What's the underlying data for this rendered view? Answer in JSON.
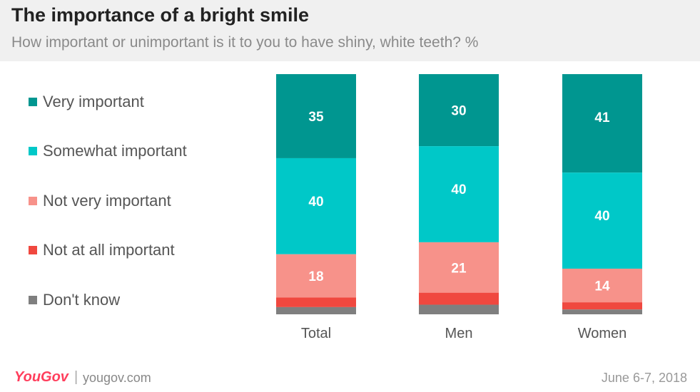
{
  "title": "The importance of a bright smile",
  "subtitle": "How important or unimportant is it to you to have shiny, white teeth? %",
  "footer": {
    "brand": "YouGov",
    "separator": "|",
    "url": "yougov.com",
    "date": "June 6-7, 2018"
  },
  "chart_data": {
    "type": "bar",
    "stacked": true,
    "categories": [
      "Total",
      "Men",
      "Women"
    ],
    "series": [
      {
        "name": "Very important",
        "color": "#009690",
        "values": [
          35,
          30,
          41
        ],
        "labels": [
          "35",
          "30",
          "41"
        ]
      },
      {
        "name": "Somewhat important",
        "color": "#00c8c8",
        "values": [
          40,
          40,
          40
        ],
        "labels": [
          "40",
          "40",
          "40"
        ]
      },
      {
        "name": "Not very important",
        "color": "#f7928a",
        "values": [
          18,
          21,
          14
        ],
        "labels": [
          "18",
          "21",
          "14"
        ]
      },
      {
        "name": "Not at all important",
        "color": "#f0483f",
        "values": [
          4,
          5,
          3
        ],
        "labels": [
          "",
          "",
          ""
        ]
      },
      {
        "name": "Don't know",
        "color": "#7f7f7f",
        "values": [
          3,
          4,
          2
        ],
        "labels": [
          "",
          "",
          ""
        ]
      }
    ],
    "ylim": [
      0,
      100
    ],
    "legend_position": "left",
    "grid": false
  }
}
